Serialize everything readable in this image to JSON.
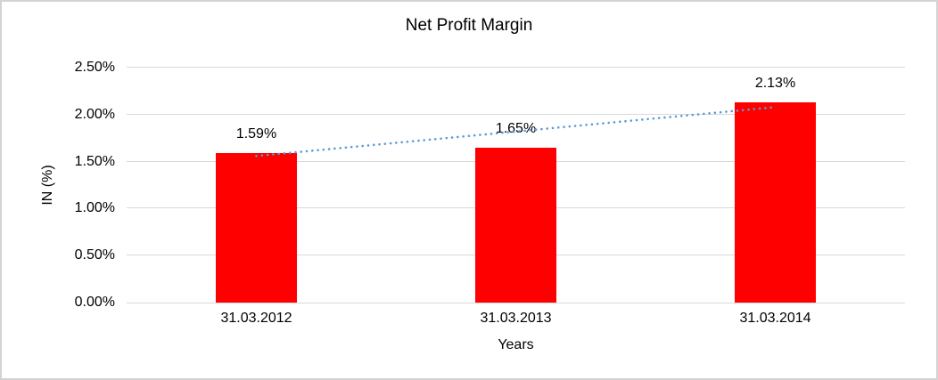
{
  "chart_data": {
    "type": "bar",
    "title": "Net Profit Margin",
    "xlabel": "Years",
    "ylabel": "IN (%)",
    "categories": [
      "31.03.2012",
      "31.03.2013",
      "31.03.2014"
    ],
    "values": [
      1.59,
      1.65,
      2.13
    ],
    "data_labels": [
      "1.59%",
      "1.65%",
      "2.13%"
    ],
    "ylim": [
      0,
      2.5
    ],
    "ytick_values": [
      0,
      0.5,
      1.0,
      1.5,
      2.0,
      2.5
    ],
    "ytick_labels": [
      "0.00%",
      "0.50%",
      "1.00%",
      "1.50%",
      "2.00%",
      "2.50%"
    ],
    "grid": true,
    "legend": "none",
    "bar_color": "#ff0000",
    "gridline_color": "#d9d9d9",
    "text_color": "#000000",
    "trendline": {
      "type": "linear",
      "style": "dotted",
      "color": "#5b9bd5",
      "start": {
        "category_index": 0,
        "value": 1.56
      },
      "end": {
        "category_index": 2,
        "value": 2.08
      }
    }
  }
}
